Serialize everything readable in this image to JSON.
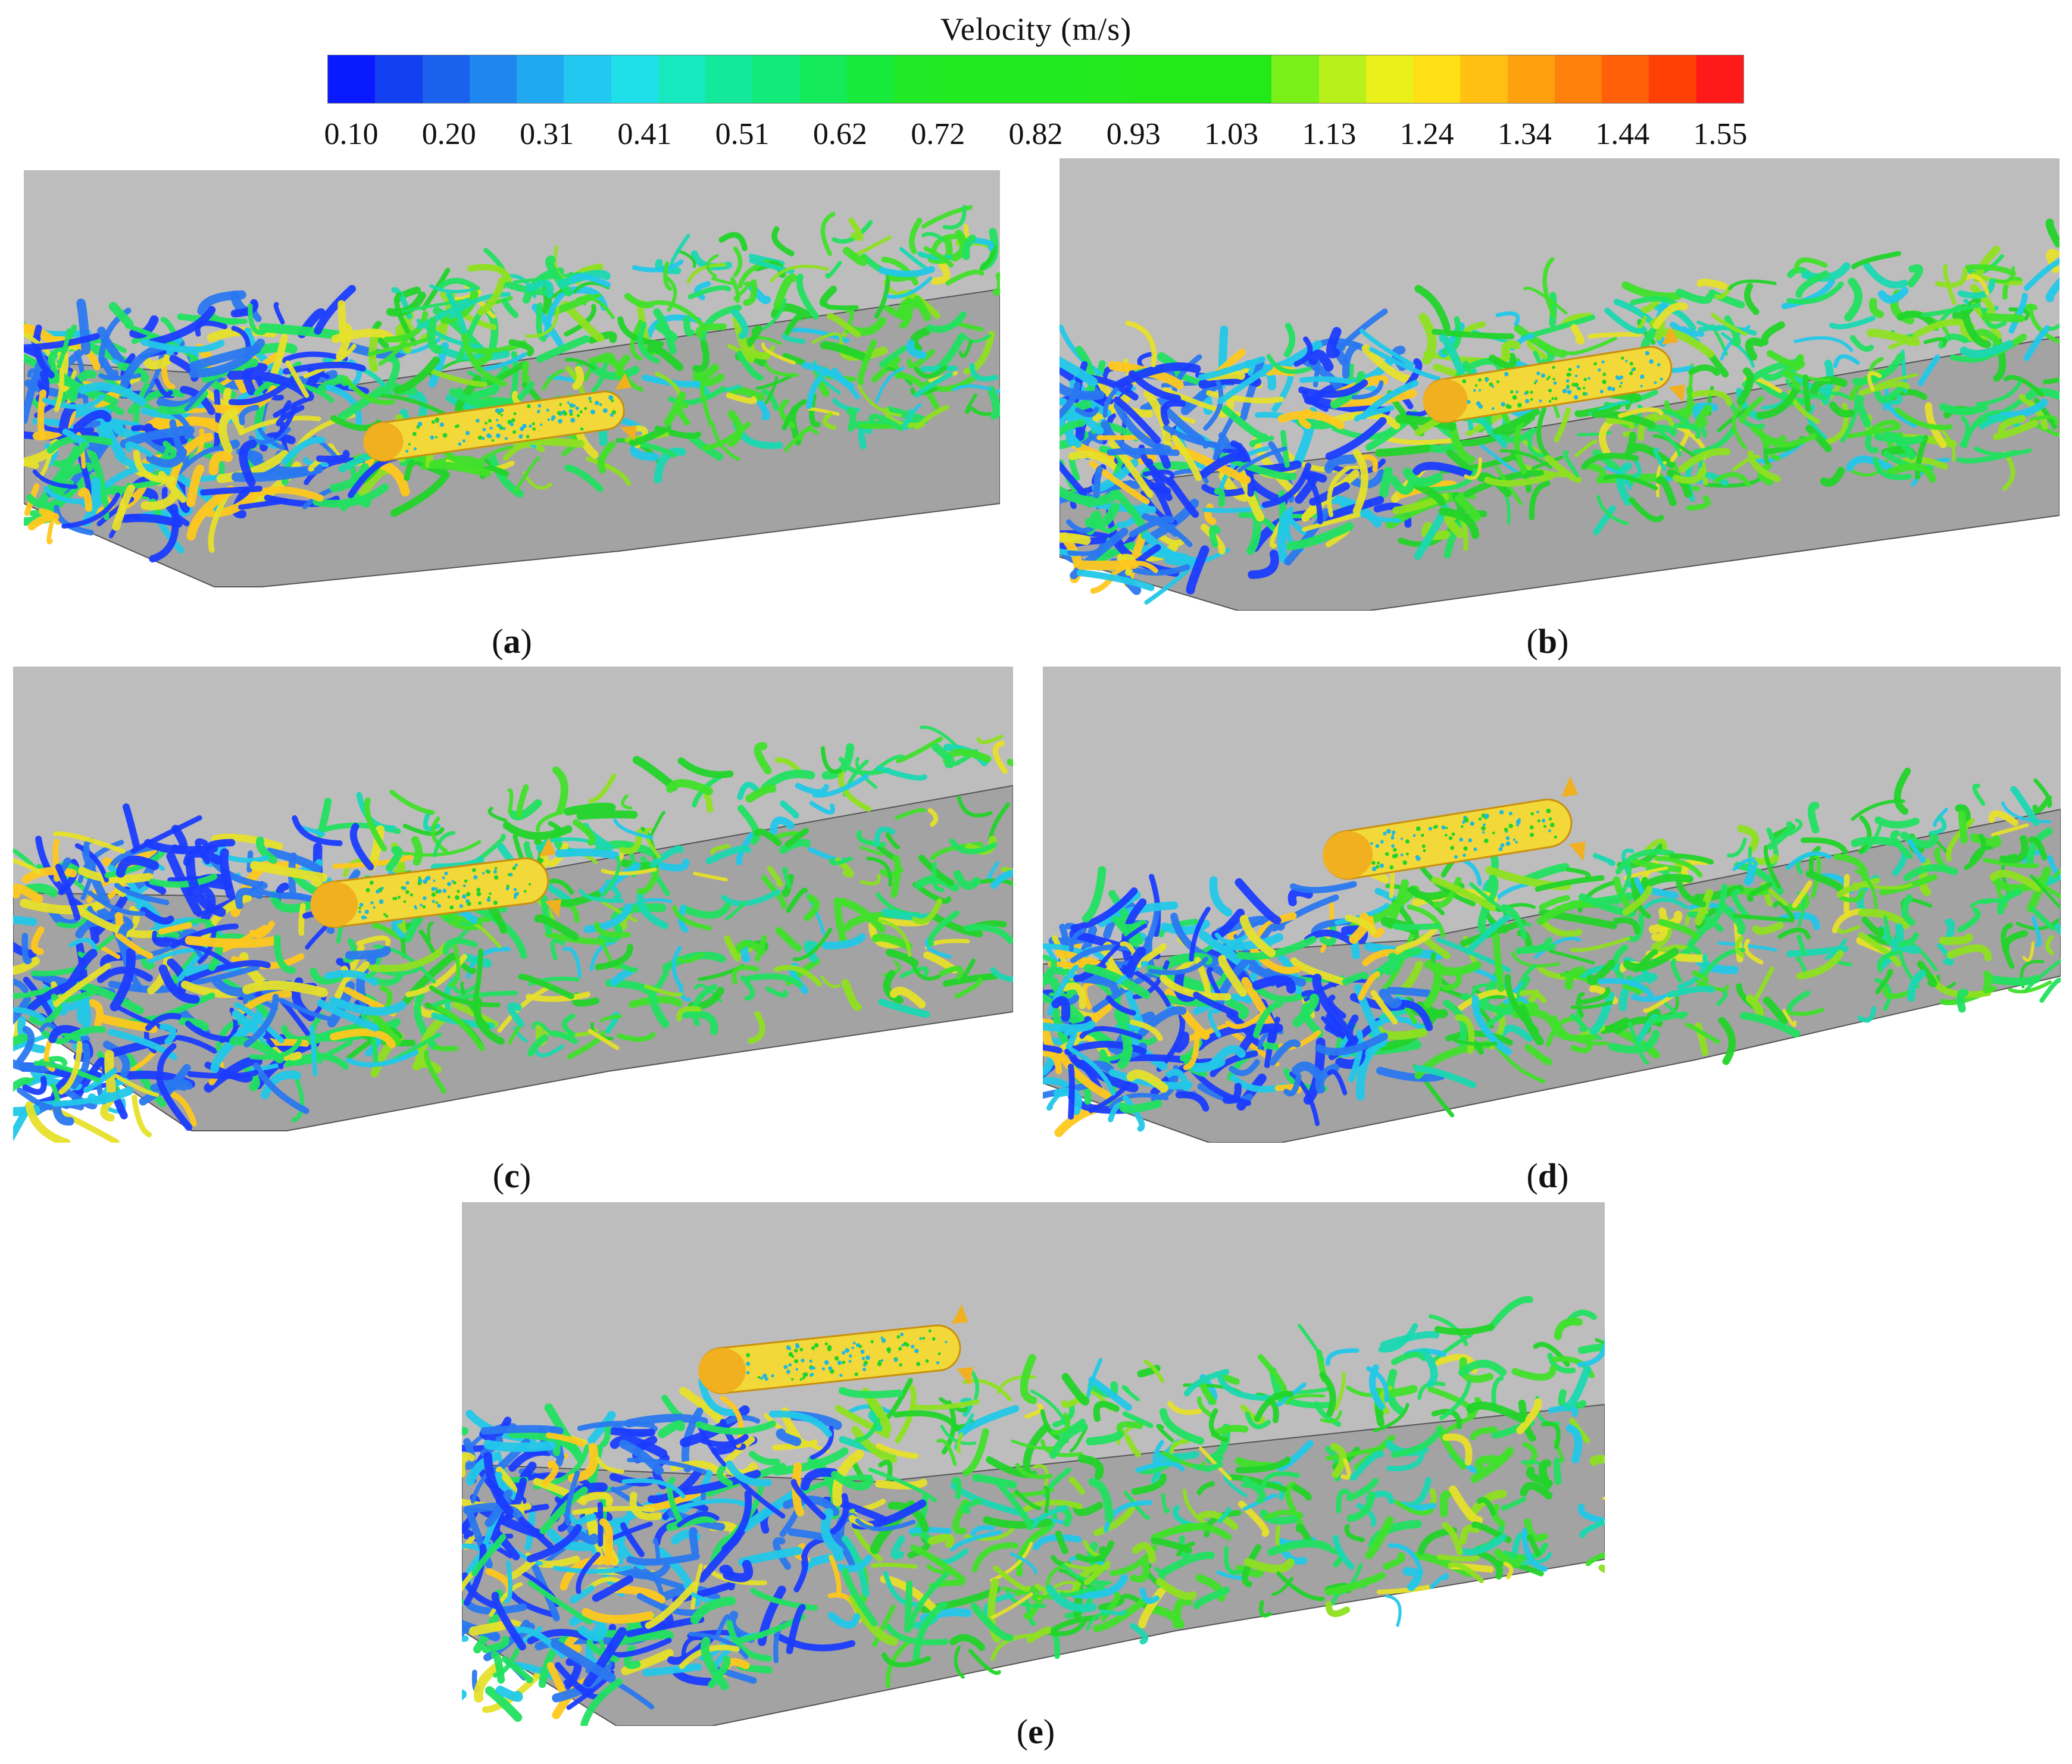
{
  "legend": {
    "title": "Velocity (m/s)",
    "tick_labels": [
      "0.10",
      "0.20",
      "0.31",
      "0.41",
      "0.51",
      "0.62",
      "0.72",
      "0.82",
      "0.93",
      "1.03",
      "1.13",
      "1.24",
      "1.34",
      "1.44",
      "1.55"
    ],
    "colors": [
      "#0a1aff",
      "#1340f0",
      "#1a62ee",
      "#1e86ee",
      "#20a8f0",
      "#22c8f0",
      "#1fe0e8",
      "#16e8c0",
      "#14e89a",
      "#12ea7a",
      "#14ea5a",
      "#18ea3c",
      "#20ea26",
      "#20ea20",
      "#20ea20",
      "#20ea20",
      "#22ea1c",
      "#22ea18",
      "#22ea18",
      "#22ea18",
      "#7af01a",
      "#b8f01a",
      "#eaf01a",
      "#ffe016",
      "#ffc012",
      "#ffa00e",
      "#ff800a",
      "#ff6008",
      "#ff4006",
      "#ff1a1a"
    ]
  },
  "panels": [
    {
      "id": "a",
      "caption_open": "(",
      "caption_letter": "a",
      "caption_close": ")"
    },
    {
      "id": "b",
      "caption_open": "(",
      "caption_letter": "b",
      "caption_close": ")"
    },
    {
      "id": "c",
      "caption_open": "(",
      "caption_letter": "c",
      "caption_close": ")"
    },
    {
      "id": "d",
      "caption_open": "(",
      "caption_letter": "d",
      "caption_close": ")"
    },
    {
      "id": "e",
      "caption_open": "(",
      "caption_letter": "e",
      "caption_close": ")"
    }
  ],
  "scene": {
    "wall_color": "#bdbdbd",
    "floor_color": "#a3a3a3",
    "vortex_palette": [
      "#1b3cff",
      "#2a78f0",
      "#22c8e8",
      "#19d8b0",
      "#22e060",
      "#3fe02a",
      "#22d42a",
      "#8ee020",
      "#e6e02a",
      "#ffc81e",
      "#ff8a18"
    ],
    "body_color": "#f2d838"
  }
}
